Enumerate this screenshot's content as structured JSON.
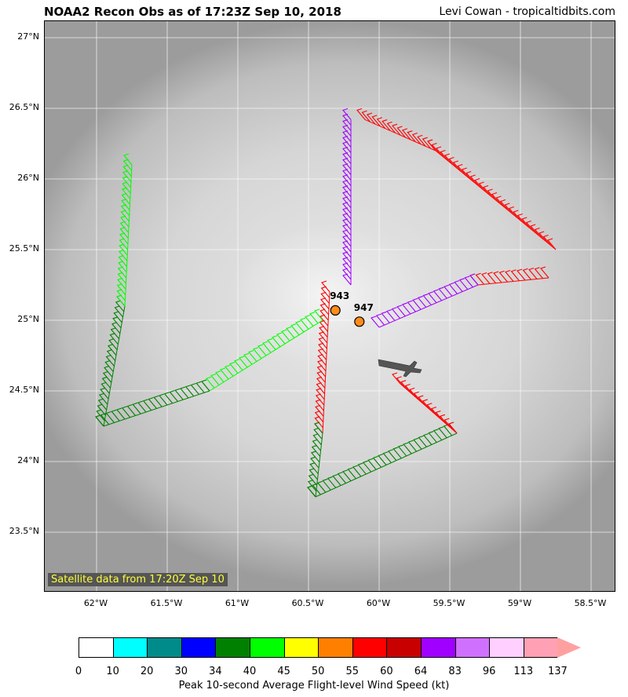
{
  "title": "NOAA2 Recon Obs as of 17:23Z Sep 10, 2018",
  "credit": "Levi Cowan - tropicaltidbits.com",
  "satellite_label": "Satellite data from 17:20Z Sep 10",
  "lat_labels": [
    "27°N",
    "26.5°N",
    "26°N",
    "25.5°N",
    "25°N",
    "24.5°N",
    "24°N",
    "23.5°N"
  ],
  "lon_labels": [
    "62°W",
    "61.5°W",
    "61°W",
    "60.5°W",
    "60°W",
    "59.5°W",
    "59°W",
    "58.5°W"
  ],
  "pressure_obs": [
    {
      "label": "943",
      "lat": 25.07,
      "lon": -60.31
    },
    {
      "label": "947",
      "lat": 24.99,
      "lon": -60.14
    }
  ],
  "colorbar": {
    "label": "Peak 10-second Average Flight-level Wind Speed (kt)",
    "ticks": [
      "0",
      "10",
      "20",
      "30",
      "34",
      "40",
      "45",
      "50",
      "55",
      "60",
      "64",
      "83",
      "96",
      "113",
      "137"
    ],
    "colors": [
      "#ffffff",
      "#00ffff",
      "#008b8b",
      "#0000ff",
      "#008000",
      "#00ff00",
      "#ffff00",
      "#ff8000",
      "#ff0000",
      "#c80000",
      "#a000ff",
      "#d070ff",
      "#ffd0ff",
      "#ffa0b4"
    ]
  },
  "flight_legs": [
    {
      "from": [
        26.42,
        -60.2
      ],
      "to": [
        25.25,
        -60.2
      ],
      "color": "#a000ff"
    },
    {
      "from": [
        26.42,
        -60.1
      ],
      "to": [
        26.2,
        -59.6
      ],
      "color": "#ff0000"
    },
    {
      "from": [
        26.2,
        -59.6
      ],
      "to": [
        25.5,
        -58.75
      ],
      "color": "#ff0000"
    },
    {
      "from": [
        25.3,
        -58.8
      ],
      "to": [
        25.25,
        -59.3
      ],
      "color": "#ff0000"
    },
    {
      "from": [
        25.25,
        -59.3
      ],
      "to": [
        24.95,
        -60.0
      ],
      "color": "#a000ff"
    },
    {
      "from": [
        25.2,
        -60.35
      ],
      "to": [
        24.2,
        -60.4
      ],
      "color": "#ff0000"
    },
    {
      "from": [
        24.2,
        -60.4
      ],
      "to": [
        23.75,
        -60.45
      ],
      "color": "#008000"
    },
    {
      "from": [
        23.75,
        -60.45
      ],
      "to": [
        24.2,
        -59.45
      ],
      "color": "#008000"
    },
    {
      "from": [
        24.2,
        -59.45
      ],
      "to": [
        24.55,
        -59.85
      ],
      "color": "#ff0000"
    },
    {
      "from": [
        25.0,
        -60.4
      ],
      "to": [
        24.5,
        -61.2
      ],
      "color": "#00ff00"
    },
    {
      "from": [
        24.5,
        -61.2
      ],
      "to": [
        24.25,
        -61.95
      ],
      "color": "#008000"
    },
    {
      "from": [
        24.25,
        -61.95
      ],
      "to": [
        25.1,
        -61.8
      ],
      "color": "#008000"
    },
    {
      "from": [
        25.1,
        -61.8
      ],
      "to": [
        26.1,
        -61.75
      ],
      "color": "#00ff00"
    }
  ]
}
